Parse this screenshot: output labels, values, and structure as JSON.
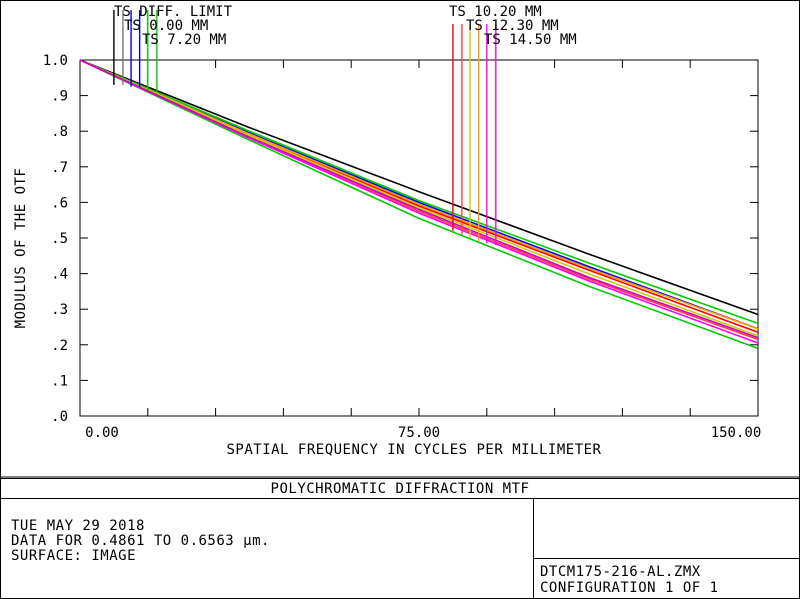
{
  "chart_data": {
    "type": "line",
    "title": "POLYCHROMATIC DIFFRACTION MTF",
    "xlabel": "SPATIAL FREQUENCY IN CYCLES PER MILLIMETER",
    "ylabel": "MODULUS OF THE OTF",
    "xlim": [
      0,
      150
    ],
    "ylim": [
      0,
      1.0
    ],
    "x_ticks": [
      0,
      15,
      30,
      45,
      60,
      75,
      90,
      105,
      120,
      135,
      150
    ],
    "x_tick_labels": [
      "0.00",
      "75.00",
      "150.00"
    ],
    "x_tick_label_values": [
      0,
      75,
      150
    ],
    "y_ticks": [
      0,
      0.1,
      0.2,
      0.3,
      0.4,
      0.5,
      0.6,
      0.7,
      0.8,
      0.9,
      1.0
    ],
    "y_tick_labels": [
      ".0",
      ".1",
      ".2",
      ".3",
      ".4",
      ".5",
      ".6",
      ".7",
      ".8",
      ".9",
      "1.0"
    ],
    "grid": false,
    "legend_groups": [
      {
        "labels": [
          "TS DIFF. LIMIT",
          "TS 0.00 MM",
          "TS 7.20 MM"
        ]
      },
      {
        "labels": [
          "TS 10.20 MM",
          "TS 12.30 MM",
          "TS 14.50 MM"
        ]
      }
    ],
    "series": [
      {
        "name": "TS DIFF. LIMIT",
        "color": "#000000",
        "x": [
          0,
          37.5,
          75,
          112.5,
          150
        ],
        "y": [
          1.0,
          0.81,
          0.63,
          0.455,
          0.285
        ]
      },
      {
        "name": "TS 0.00 MM",
        "color": "#0000ff",
        "x": [
          0,
          37.5,
          75,
          112.5,
          150
        ],
        "y": [
          1.0,
          0.795,
          0.6,
          0.42,
          0.245
        ]
      },
      {
        "name": "TS 7.20 MM",
        "color": "#00cc00",
        "x": [
          0,
          37.5,
          75,
          112.5,
          150
        ],
        "y": [
          1.0,
          0.8,
          0.605,
          0.43,
          0.26
        ]
      },
      {
        "color": "#00cc00",
        "x": [
          0,
          37.5,
          75,
          112.5,
          150
        ],
        "y": [
          1.0,
          0.775,
          0.555,
          0.365,
          0.19
        ]
      },
      {
        "name": "TS 10.20 MM",
        "color": "#ff0000",
        "x": [
          0,
          37.5,
          75,
          112.5,
          150
        ],
        "y": [
          1.0,
          0.79,
          0.59,
          0.41,
          0.235
        ]
      },
      {
        "color": "#ff4040",
        "x": [
          0,
          37.5,
          75,
          112.5,
          150
        ],
        "y": [
          1.0,
          0.785,
          0.575,
          0.385,
          0.215
        ]
      },
      {
        "name": "TS 12.30 MM",
        "color": "#ff9900",
        "x": [
          0,
          37.5,
          75,
          112.5,
          150
        ],
        "y": [
          1.0,
          0.792,
          0.595,
          0.415,
          0.245
        ]
      },
      {
        "color": "#cccc00",
        "x": [
          0,
          37.5,
          75,
          112.5,
          150
        ],
        "y": [
          1.0,
          0.788,
          0.585,
          0.4,
          0.225
        ]
      },
      {
        "name": "TS 14.50 MM",
        "color": "#ff00ff",
        "x": [
          0,
          37.5,
          75,
          112.5,
          150
        ],
        "y": [
          1.0,
          0.78,
          0.57,
          0.38,
          0.205
        ]
      },
      {
        "color": "#cc00cc",
        "x": [
          0,
          37.5,
          75,
          112.5,
          150
        ],
        "y": [
          1.0,
          0.783,
          0.58,
          0.39,
          0.22
        ]
      }
    ],
    "legend_ticks": [
      {
        "group": 0,
        "color": "#000000",
        "x": 7.5,
        "y": 0.93
      },
      {
        "group": 0,
        "color": "#777777",
        "x": 9.5,
        "y": 0.93
      },
      {
        "group": 0,
        "color": "#0000ff",
        "x": 11.3,
        "y": 0.925
      },
      {
        "group": 0,
        "color": "#0000ff",
        "x": 13.2,
        "y": 0.925
      },
      {
        "group": 0,
        "color": "#00cc00",
        "x": 15.0,
        "y": 0.915
      },
      {
        "group": 0,
        "color": "#00cc00",
        "x": 17.0,
        "y": 0.91
      },
      {
        "group": 1,
        "color": "#ff0000",
        "x": 82.5,
        "y": 0.52
      },
      {
        "group": 1,
        "color": "#ff4040",
        "x": 84.5,
        "y": 0.51
      },
      {
        "group": 1,
        "color": "#cccc00",
        "x": 86.3,
        "y": 0.5
      },
      {
        "group": 1,
        "color": "#ff9900",
        "x": 88.2,
        "y": 0.49
      },
      {
        "group": 1,
        "color": "#ff00ff",
        "x": 90.0,
        "y": 0.485
      },
      {
        "group": 1,
        "color": "#ff00ff",
        "x": 92.0,
        "y": 0.48
      }
    ]
  },
  "info": {
    "date": "TUE MAY 29 2018",
    "data_range": "DATA FOR 0.4861 TO 0.6563 µm.",
    "surface": "SURFACE: IMAGE"
  },
  "file": {
    "name": "DTCM175-216-AL.ZMX",
    "configuration": "CONFIGURATION 1 OF 1"
  }
}
